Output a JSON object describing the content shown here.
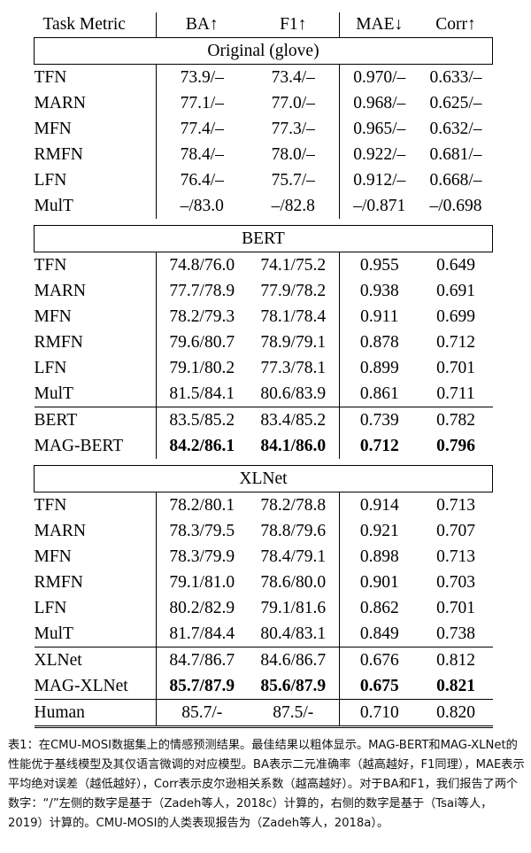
{
  "table": {
    "headers": [
      "Task Metric",
      "BA↑",
      "F1↑",
      "MAE↓",
      "Corr↑"
    ],
    "sections": [
      {
        "title": "Original (glove)",
        "groups": [
          {
            "rows": [
              {
                "name": "TFN",
                "ba": "73.9/–",
                "f1": "73.4/–",
                "mae": "0.970/–",
                "corr": "0.633/–"
              },
              {
                "name": "MARN",
                "ba": "77.1/–",
                "f1": "77.0/–",
                "mae": "0.968/–",
                "corr": "0.625/–"
              },
              {
                "name": "MFN",
                "ba": "77.4/–",
                "f1": "77.3/–",
                "mae": "0.965/–",
                "corr": "0.632/–"
              },
              {
                "name": "RMFN",
                "ba": "78.4/–",
                "f1": "78.0/–",
                "mae": "0.922/–",
                "corr": "0.681/–"
              },
              {
                "name": "LFN",
                "ba": "76.4/–",
                "f1": "75.7/–",
                "mae": "0.912/–",
                "corr": "0.668/–"
              },
              {
                "name": "MulT",
                "ba": "–/83.0",
                "f1": "–/82.8",
                "mae": "–/0.871",
                "corr": "–/0.698"
              }
            ]
          }
        ]
      },
      {
        "title": "BERT",
        "groups": [
          {
            "rows": [
              {
                "name": "TFN",
                "ba": "74.8/76.0",
                "f1": "74.1/75.2",
                "mae": "0.955",
                "corr": "0.649"
              },
              {
                "name": "MARN",
                "ba": "77.7/78.9",
                "f1": "77.9/78.2",
                "mae": "0.938",
                "corr": "0.691"
              },
              {
                "name": "MFN",
                "ba": "78.2/79.3",
                "f1": "78.1/78.4",
                "mae": "0.911",
                "corr": "0.699"
              },
              {
                "name": "RMFN",
                "ba": "79.6/80.7",
                "f1": "78.9/79.1",
                "mae": "0.878",
                "corr": "0.712"
              },
              {
                "name": "LFN",
                "ba": "79.1/80.2",
                "f1": "77.3/78.1",
                "mae": "0.899",
                "corr": "0.701"
              },
              {
                "name": "MulT",
                "ba": "81.5/84.1",
                "f1": "80.6/83.9",
                "mae": "0.861",
                "corr": "0.711"
              }
            ]
          },
          {
            "rows": [
              {
                "name": "BERT",
                "ba": "83.5/85.2",
                "f1": "83.4/85.2",
                "mae": "0.739",
                "corr": "0.782"
              },
              {
                "name": "MAG-BERT",
                "ba": "84.2/86.1",
                "f1": "84.1/86.0",
                "mae": "0.712",
                "corr": "0.796",
                "best": true
              }
            ]
          }
        ]
      },
      {
        "title": "XLNet",
        "groups": [
          {
            "rows": [
              {
                "name": "TFN",
                "ba": "78.2/80.1",
                "f1": "78.2/78.8",
                "mae": "0.914",
                "corr": "0.713"
              },
              {
                "name": "MARN",
                "ba": "78.3/79.5",
                "f1": "78.8/79.6",
                "mae": "0.921",
                "corr": "0.707"
              },
              {
                "name": "MFN",
                "ba": "78.3/79.9",
                "f1": "78.4/79.1",
                "mae": "0.898",
                "corr": "0.713"
              },
              {
                "name": "RMFN",
                "ba": "79.1/81.0",
                "f1": "78.6/80.0",
                "mae": "0.901",
                "corr": "0.703"
              },
              {
                "name": "LFN",
                "ba": "80.2/82.9",
                "f1": "79.1/81.6",
                "mae": "0.862",
                "corr": "0.701"
              },
              {
                "name": "MulT",
                "ba": "81.7/84.4",
                "f1": "80.4/83.1",
                "mae": "0.849",
                "corr": "0.738"
              }
            ]
          },
          {
            "rows": [
              {
                "name": "XLNet",
                "ba": "84.7/86.7",
                "f1": "84.6/86.7",
                "mae": "0.676",
                "corr": "0.812"
              },
              {
                "name": "MAG-XLNet",
                "ba": "85.7/87.9",
                "f1": "85.6/87.9",
                "mae": "0.675",
                "corr": "0.821",
                "best": true
              }
            ]
          },
          {
            "rows": [
              {
                "name": "Human",
                "ba": "85.7/-",
                "f1": "87.5/-",
                "mae": "0.710",
                "corr": "0.820"
              }
            ]
          }
        ]
      }
    ]
  },
  "caption": "表1：在CMU-MOSI数据集上的情感预测结果。最佳结果以粗体显示。MAG-BERT和MAG-XLNet的性能优于基线模型及其仅语言微调的对应模型。BA表示二元准确率（越高越好，F1同理），MAE表示平均绝对误差（越低越好），Corr表示皮尔逊相关系数（越高越好）。对于BA和F1，我们报告了两个数字：“/”左侧的数字是基于（Zadeh等人，2018c）计算的，右侧的数字是基于（Tsai等人，2019）计算的。CMU-MOSI的人类表现报告为（Zadeh等人，2018a）。"
}
